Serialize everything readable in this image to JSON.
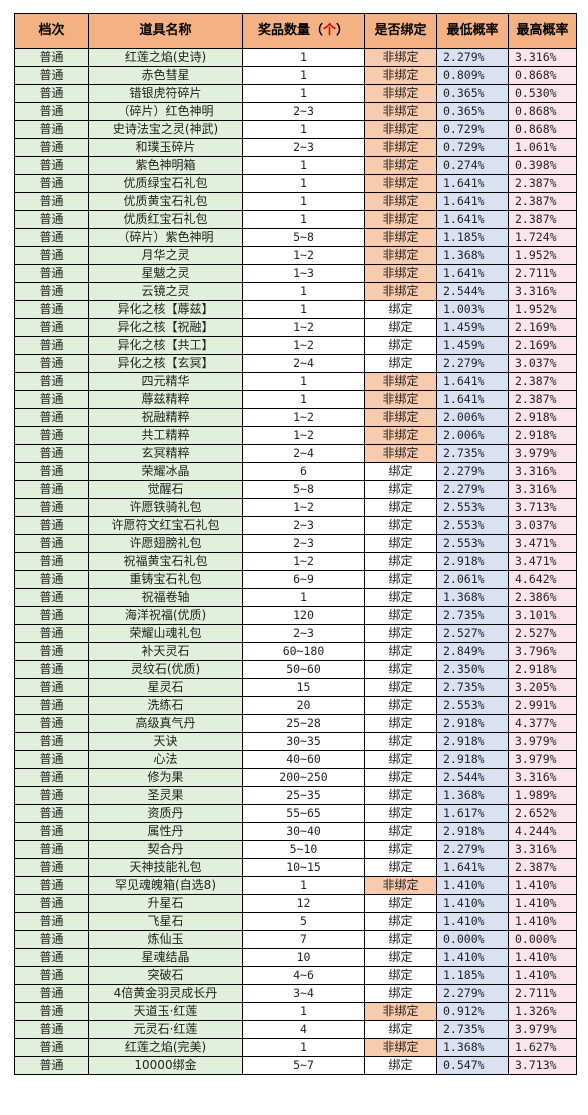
{
  "headers": {
    "tier": "档次",
    "name": "道具名称",
    "qty_prefix": "奖品数量（",
    "qty_unit": "个",
    "qty_suffix": "）",
    "bind": "是否绑定",
    "min": "最低概率",
    "max": "最高概率"
  },
  "rows": [
    [
      "普通",
      "红莲之焰(史诗)",
      "1",
      "非绑定",
      "2.279%",
      "3.316%"
    ],
    [
      "普通",
      "赤色彗星",
      "1",
      "非绑定",
      "0.809%",
      "0.868%"
    ],
    [
      "普通",
      "错银虎符碎片",
      "1",
      "非绑定",
      "0.365%",
      "0.530%"
    ],
    [
      "普通",
      "（碎片）红色神明",
      "2~3",
      "非绑定",
      "0.365%",
      "0.868%"
    ],
    [
      "普通",
      "史诗法宝之灵(神武)",
      "1",
      "非绑定",
      "0.729%",
      "0.868%"
    ],
    [
      "普通",
      "和璞玉碎片",
      "2~3",
      "非绑定",
      "0.729%",
      "1.061%"
    ],
    [
      "普通",
      "紫色神明箱",
      "1",
      "非绑定",
      "0.274%",
      "0.398%"
    ],
    [
      "普通",
      "优质绿宝石礼包",
      "1",
      "非绑定",
      "1.641%",
      "2.387%"
    ],
    [
      "普通",
      "优质黄宝石礼包",
      "1",
      "非绑定",
      "1.641%",
      "2.387%"
    ],
    [
      "普通",
      "优质红宝石礼包",
      "1",
      "非绑定",
      "1.641%",
      "2.387%"
    ],
    [
      "普通",
      "（碎片）紫色神明",
      "5~8",
      "非绑定",
      "1.185%",
      "1.724%"
    ],
    [
      "普通",
      "月华之灵",
      "1~2",
      "非绑定",
      "1.368%",
      "1.952%"
    ],
    [
      "普通",
      "星魃之灵",
      "1~3",
      "非绑定",
      "1.641%",
      "2.711%"
    ],
    [
      "普通",
      "云镜之灵",
      "1",
      "非绑定",
      "2.544%",
      "3.316%"
    ],
    [
      "普通",
      "异化之核【蓐兹】",
      "1",
      "绑定",
      "1.003%",
      "1.952%"
    ],
    [
      "普通",
      "异化之核【祝融】",
      "1~2",
      "绑定",
      "1.459%",
      "2.169%"
    ],
    [
      "普通",
      "异化之核【共工】",
      "1~2",
      "绑定",
      "1.459%",
      "2.169%"
    ],
    [
      "普通",
      "异化之核【玄冥】",
      "2~4",
      "绑定",
      "2.279%",
      "3.037%"
    ],
    [
      "普通",
      "四元精华",
      "1",
      "非绑定",
      "1.641%",
      "2.387%"
    ],
    [
      "普通",
      "蓐兹精粹",
      "1",
      "非绑定",
      "1.641%",
      "2.387%"
    ],
    [
      "普通",
      "祝融精粹",
      "1~2",
      "非绑定",
      "2.006%",
      "2.918%"
    ],
    [
      "普通",
      "共工精粹",
      "1~2",
      "非绑定",
      "2.006%",
      "2.918%"
    ],
    [
      "普通",
      "玄冥精粹",
      "2~4",
      "非绑定",
      "2.735%",
      "3.979%"
    ],
    [
      "普通",
      "荣耀冰晶",
      "6",
      "绑定",
      "2.279%",
      "3.316%"
    ],
    [
      "普通",
      "觉醒石",
      "5~8",
      "绑定",
      "2.279%",
      "3.316%"
    ],
    [
      "普通",
      "许愿铁骑礼包",
      "1~2",
      "绑定",
      "2.553%",
      "3.713%"
    ],
    [
      "普通",
      "许愿符文红宝石礼包",
      "2~3",
      "绑定",
      "2.553%",
      "3.037%"
    ],
    [
      "普通",
      "许愿翅膀礼包",
      "2~3",
      "绑定",
      "2.553%",
      "3.471%"
    ],
    [
      "普通",
      "祝福黄宝石礼包",
      "1~2",
      "绑定",
      "2.918%",
      "3.471%"
    ],
    [
      "普通",
      "重铸宝石礼包",
      "6~9",
      "绑定",
      "2.061%",
      "4.642%"
    ],
    [
      "普通",
      "祝福卷轴",
      "1",
      "绑定",
      "1.368%",
      "2.386%"
    ],
    [
      "普通",
      "海洋祝福(优质)",
      "120",
      "绑定",
      "2.735%",
      "3.101%"
    ],
    [
      "普通",
      "荣耀山魂礼包",
      "2~3",
      "绑定",
      "2.527%",
      "2.527%"
    ],
    [
      "普通",
      "补天灵石",
      "60~180",
      "绑定",
      "2.849%",
      "3.796%"
    ],
    [
      "普通",
      "灵纹石(优质)",
      "50~60",
      "绑定",
      "2.350%",
      "2.918%"
    ],
    [
      "普通",
      "星灵石",
      "15",
      "绑定",
      "2.735%",
      "3.205%"
    ],
    [
      "普通",
      "洗练石",
      "20",
      "绑定",
      "2.553%",
      "2.991%"
    ],
    [
      "普通",
      "高级真气丹",
      "25~28",
      "绑定",
      "2.918%",
      "4.377%"
    ],
    [
      "普通",
      "天诀",
      "30~35",
      "绑定",
      "2.918%",
      "3.979%"
    ],
    [
      "普通",
      "心法",
      "40~60",
      "绑定",
      "2.918%",
      "3.979%"
    ],
    [
      "普通",
      "修为果",
      "200~250",
      "绑定",
      "2.544%",
      "3.316%"
    ],
    [
      "普通",
      "圣灵果",
      "25~35",
      "绑定",
      "1.368%",
      "1.989%"
    ],
    [
      "普通",
      "资质丹",
      "55~65",
      "绑定",
      "1.617%",
      "2.652%"
    ],
    [
      "普通",
      "属性丹",
      "30~40",
      "绑定",
      "2.918%",
      "4.244%"
    ],
    [
      "普通",
      "契合丹",
      "5~10",
      "绑定",
      "2.279%",
      "3.316%"
    ],
    [
      "普通",
      "天神技能礼包",
      "10~15",
      "绑定",
      "1.641%",
      "2.387%"
    ],
    [
      "普通",
      "罕见魂魄箱(自选8)",
      "1",
      "非绑定",
      "1.410%",
      "1.410%"
    ],
    [
      "普通",
      "升星石",
      "12",
      "绑定",
      "1.410%",
      "1.410%"
    ],
    [
      "普通",
      "飞星石",
      "5",
      "绑定",
      "1.410%",
      "1.410%"
    ],
    [
      "普通",
      "炼仙玉",
      "7",
      "绑定",
      "0.000%",
      "0.000%"
    ],
    [
      "普通",
      "星魂结晶",
      "10",
      "绑定",
      "1.410%",
      "1.410%"
    ],
    [
      "普通",
      "突破石",
      "4~6",
      "绑定",
      "1.185%",
      "1.410%"
    ],
    [
      "普通",
      "4倍黄金羽灵成长丹",
      "3~4",
      "绑定",
      "2.279%",
      "2.711%"
    ],
    [
      "普通",
      "天道玉·红莲",
      "1",
      "非绑定",
      "0.912%",
      "1.326%"
    ],
    [
      "普通",
      "元灵石·红莲",
      "4",
      "绑定",
      "2.735%",
      "3.979%"
    ],
    [
      "普通",
      "红莲之焰(完美)",
      "1",
      "非绑定",
      "1.368%",
      "1.627%"
    ],
    [
      "普通",
      "10000绑金",
      "5~7",
      "绑定",
      "0.547%",
      "3.713%"
    ]
  ]
}
